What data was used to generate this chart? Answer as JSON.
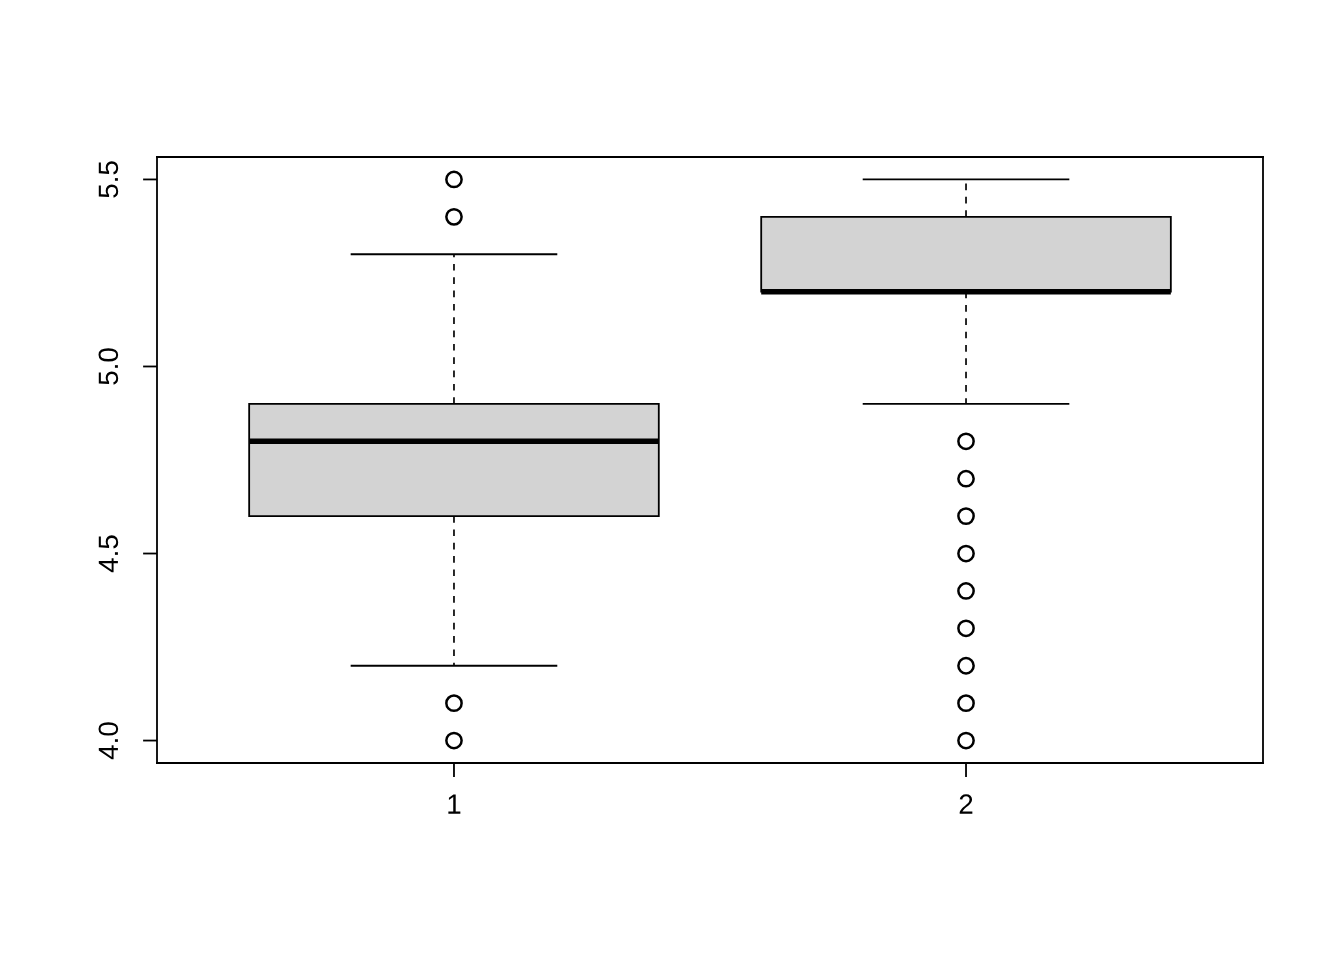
{
  "chart_data": {
    "type": "box",
    "categories": [
      "1",
      "2"
    ],
    "series": [
      {
        "color": "#d3d3d3",
        "boxes": [
          {
            "low": 4.2,
            "q1": 4.6,
            "median": 4.8,
            "q3": 4.9,
            "high": 5.3,
            "outliers": [
              4.0,
              4.1,
              5.4,
              5.5
            ]
          },
          {
            "low": 4.9,
            "q1": 5.2,
            "median": 5.2,
            "q3": 5.4,
            "high": 5.5,
            "outliers": [
              4.0,
              4.1,
              4.2,
              4.3,
              4.4,
              4.5,
              4.6,
              4.7,
              4.8
            ]
          }
        ]
      }
    ],
    "ylim": [
      3.94,
      5.56
    ],
    "yticks": [
      {
        "value": 4.0,
        "label": "4.0"
      },
      {
        "value": 4.5,
        "label": "4.5"
      },
      {
        "value": 5.0,
        "label": "5.0"
      },
      {
        "value": 5.5,
        "label": "5.5"
      }
    ],
    "marker": "circle",
    "line_style": "dashed"
  }
}
